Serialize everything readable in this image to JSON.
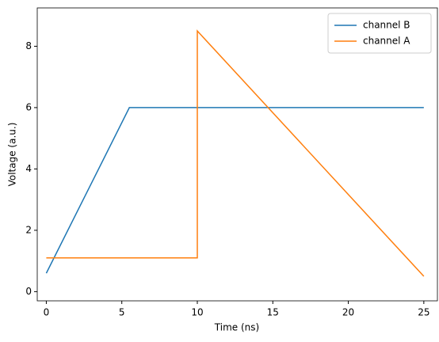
{
  "chart_data": {
    "type": "line",
    "x_label": "Time (ns)",
    "y_label": "Voltage (a.u.)",
    "series": [
      {
        "name": "channel B",
        "color": "#1f77b4",
        "x": [
          0,
          5.5,
          25
        ],
        "values": [
          0.6,
          6,
          6
        ]
      },
      {
        "name": "channel A",
        "color": "#ff7f0e",
        "x": [
          0,
          10,
          10,
          25
        ],
        "values": [
          1.1,
          1.1,
          8.5,
          0.5
        ]
      }
    ],
    "xlim": [
      -0.6,
      25.9
    ],
    "xticks": [
      0,
      5,
      10,
      15,
      20,
      25
    ],
    "ylim": [
      -0.3,
      9.25
    ],
    "yticks": [
      0,
      2,
      4,
      6,
      8
    ],
    "legend": "upper right",
    "grid": false
  }
}
